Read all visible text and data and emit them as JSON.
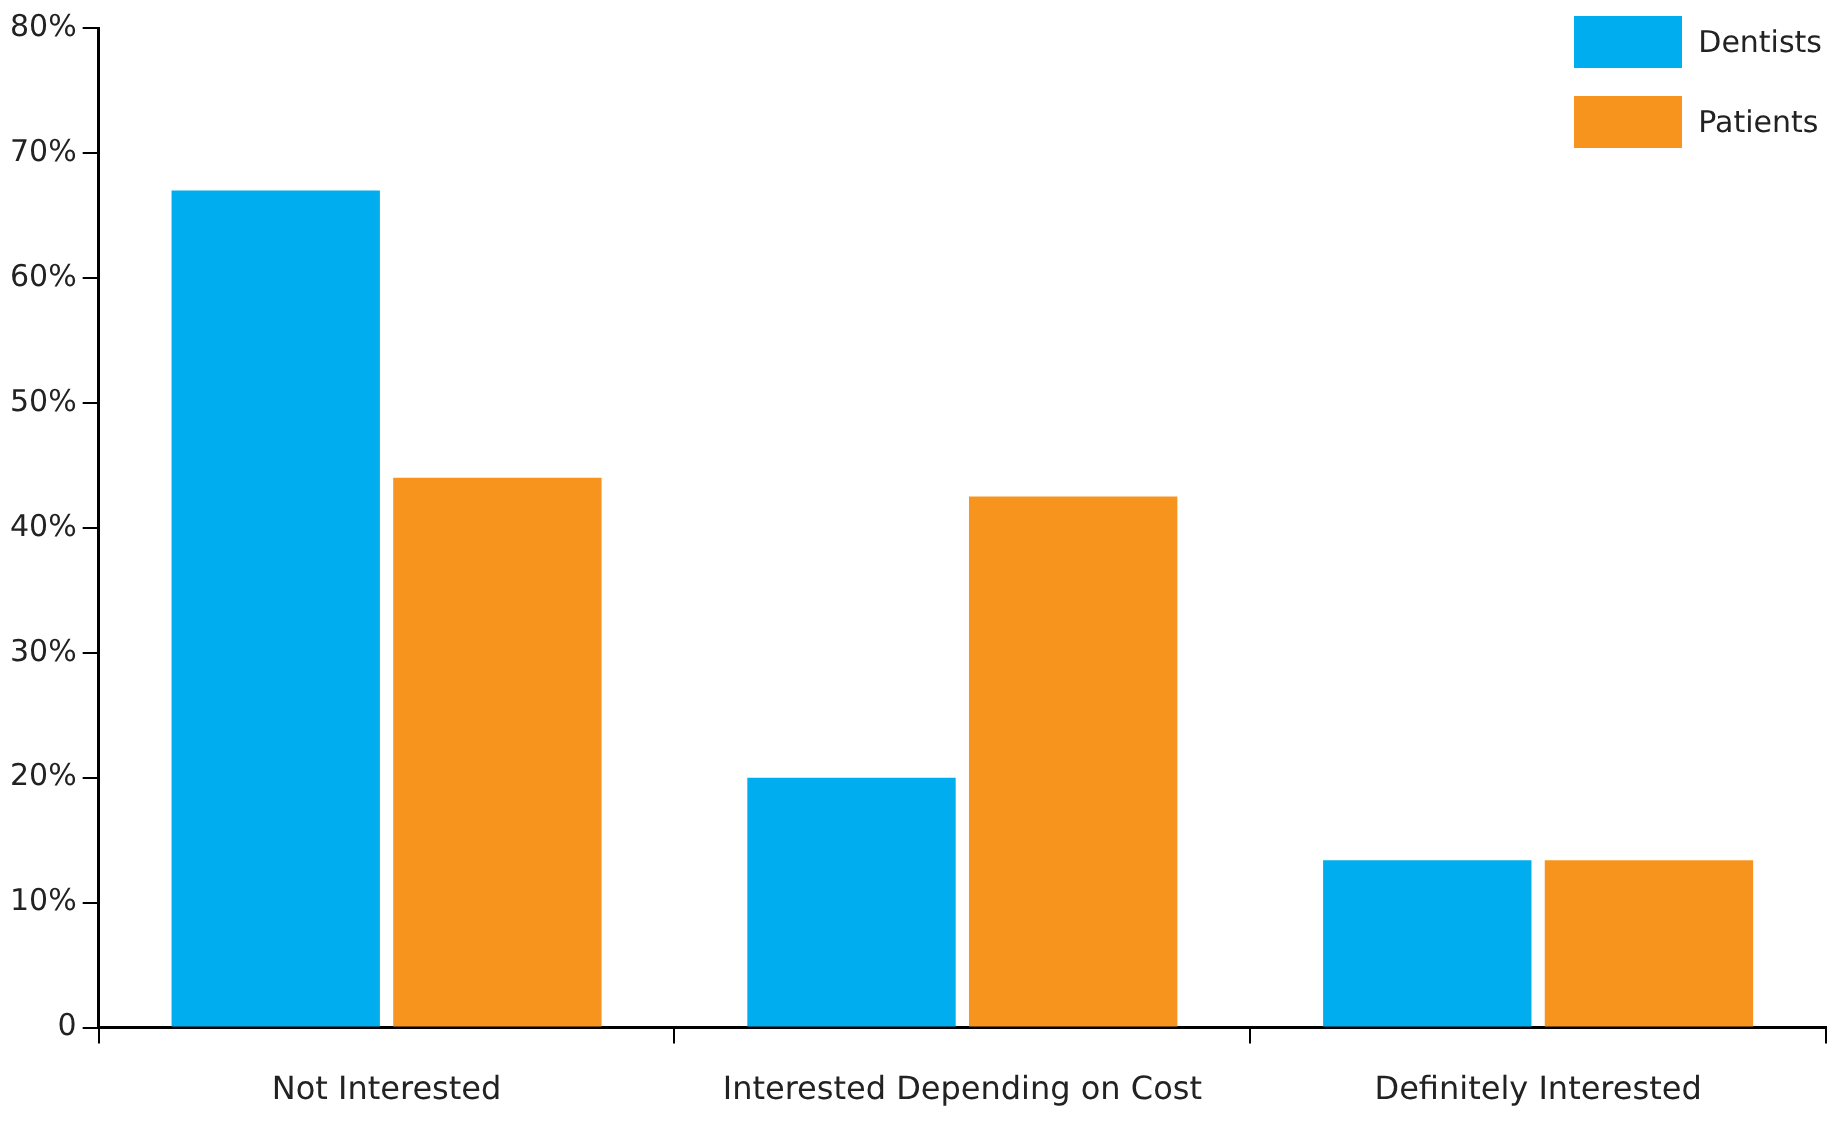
{
  "chart_data": {
    "type": "bar",
    "categories": [
      "Not Interested",
      "Interested Depending on Cost",
      "Definitely Interested"
    ],
    "series": [
      {
        "name": "Dentists",
        "color": "#00aeef",
        "values": [
          67,
          20,
          13.4
        ]
      },
      {
        "name": "Patients",
        "color": "#f7941d",
        "values": [
          44,
          42.5,
          13.4
        ]
      }
    ],
    "ylim": [
      0,
      80
    ],
    "yticks": [
      {
        "value": 0,
        "label": "0"
      },
      {
        "value": 10,
        "label": "10%"
      },
      {
        "value": 20,
        "label": "20%"
      },
      {
        "value": 30,
        "label": "30%"
      },
      {
        "value": 40,
        "label": "40%"
      },
      {
        "value": 50,
        "label": "50%"
      },
      {
        "value": 60,
        "label": "60%"
      },
      {
        "value": 70,
        "label": "70%"
      },
      {
        "value": 80,
        "label": "80%"
      }
    ],
    "grid": false,
    "legend": "top right"
  }
}
